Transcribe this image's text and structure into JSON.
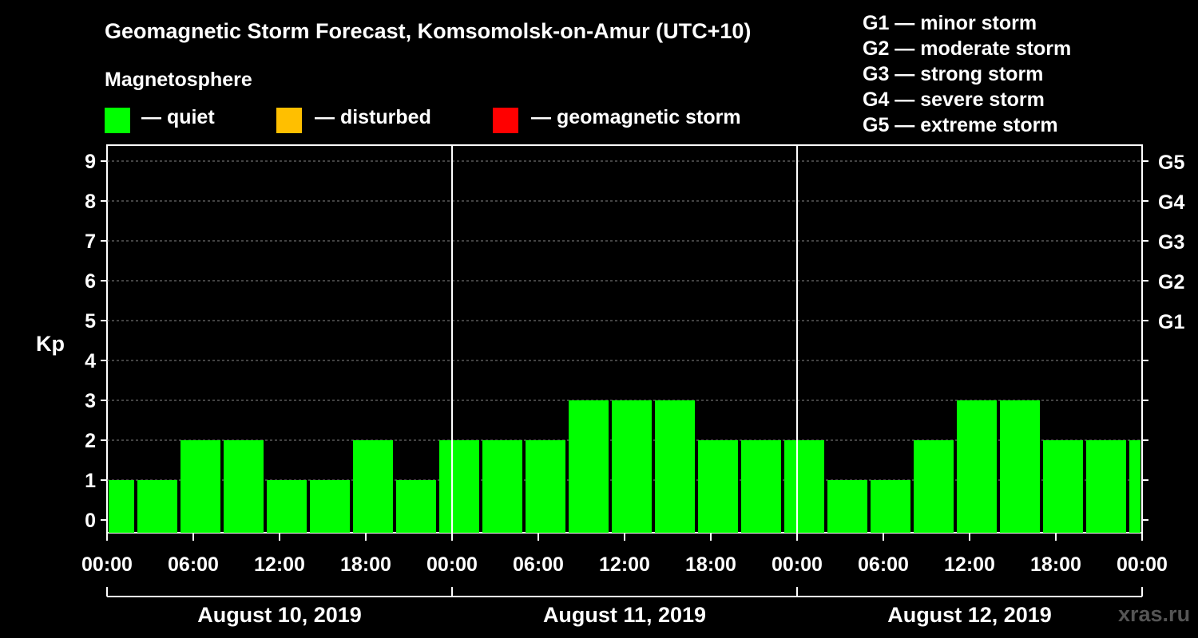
{
  "title": "Geomagnetic Storm Forecast, Komsomolsk-on-Amur (UTC+10)",
  "subtitle": "Magnetosphere",
  "legend": [
    {
      "label": "— quiet",
      "color": "#00ff00"
    },
    {
      "label": "— disturbed",
      "color": "#ffbf00"
    },
    {
      "label": "— geomagnetic storm",
      "color": "#ff0000"
    }
  ],
  "g_scale": [
    "G1 — minor storm",
    "G2 — moderate storm",
    "G3 — strong storm",
    "G4 — severe storm",
    "G5 — extreme storm"
  ],
  "watermark": "xras.ru",
  "chart_data": {
    "type": "bar",
    "title": "Geomagnetic Storm Forecast, Komsomolsk-on-Amur (UTC+10)",
    "ylabel": "Kp",
    "ylim": [
      0,
      9
    ],
    "y_ticks": [
      "0",
      "1",
      "2",
      "3",
      "4",
      "5",
      "6",
      "7",
      "8",
      "9"
    ],
    "right_ticks": [
      {
        "kp": 5,
        "label": "G1"
      },
      {
        "kp": 6,
        "label": "G2"
      },
      {
        "kp": 7,
        "label": "G3"
      },
      {
        "kp": 8,
        "label": "G4"
      },
      {
        "kp": 9,
        "label": "G5"
      }
    ],
    "x_tick_labels": [
      "00:00",
      "06:00",
      "12:00",
      "18:00",
      "00:00",
      "06:00",
      "12:00",
      "18:00",
      "00:00",
      "06:00",
      "12:00",
      "18:00",
      "00:00"
    ],
    "days": [
      "August 10, 2019",
      "August 11, 2019",
      "August 12, 2019"
    ],
    "bar_interval_hours": 3,
    "start_hour": -1,
    "values": [
      1,
      1,
      2,
      2,
      1,
      1,
      2,
      1,
      2,
      2,
      2,
      3,
      3,
      3,
      2,
      2,
      2,
      1,
      1,
      2,
      3,
      3,
      2,
      2,
      2
    ],
    "quiet_color": "#00ff00",
    "grid": "dashed"
  }
}
